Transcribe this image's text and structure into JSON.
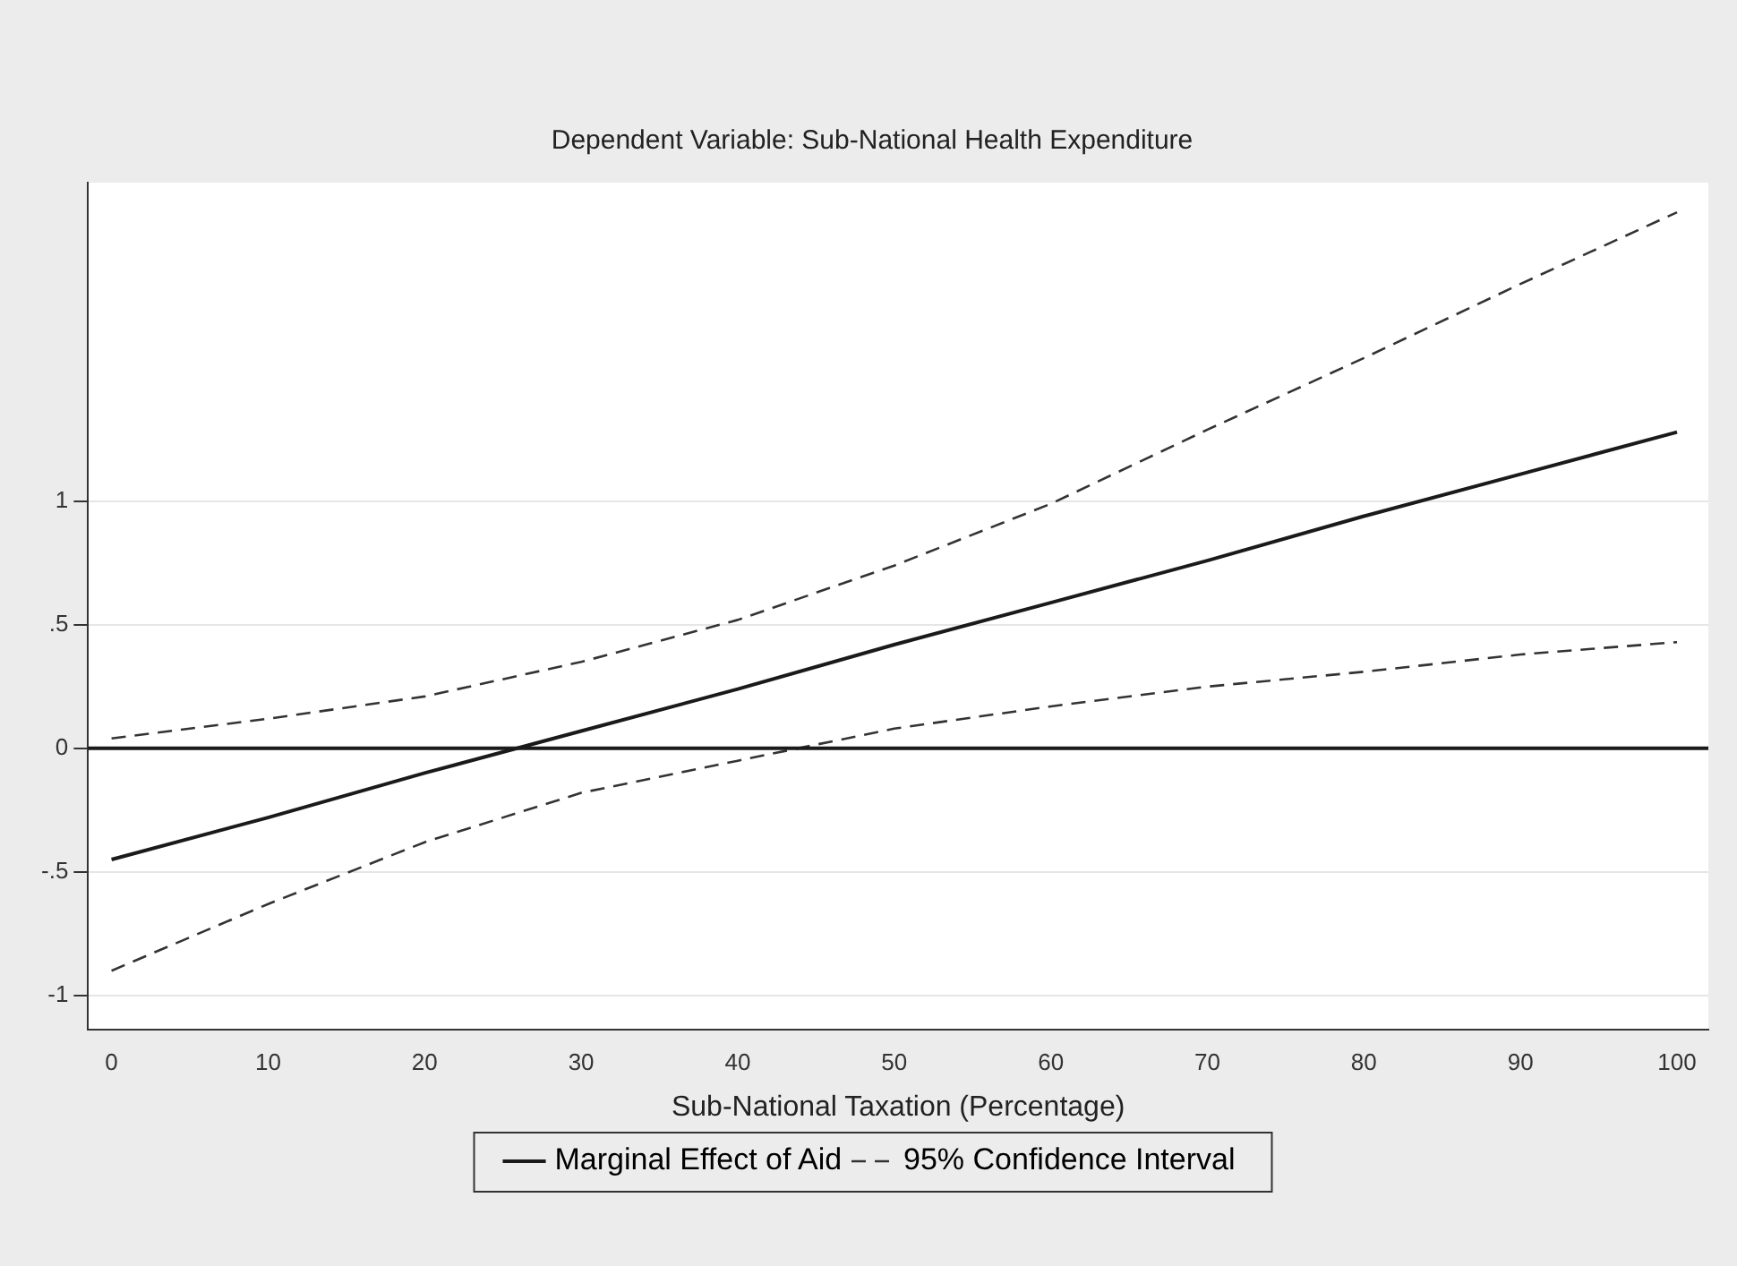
{
  "chart_data": {
    "type": "line",
    "title": "Dependent Variable: Sub-National Health Expenditure",
    "xlabel": "Sub-National Taxation (Percentage)",
    "x": [
      0,
      10,
      20,
      30,
      40,
      50,
      60,
      70,
      80,
      90,
      100
    ],
    "series": [
      {
        "name": "Marginal Effect of Aid",
        "color": "#1a1a1a",
        "line_style": "solid",
        "values": [
          -0.45,
          -0.28,
          -0.1,
          0.07,
          0.24,
          0.42,
          0.59,
          0.76,
          0.94,
          1.11,
          1.28
        ]
      },
      {
        "name": "95% Confidence Interval",
        "color": "#333333",
        "line_style": "dashed",
        "values": [
          0.04,
          0.12,
          0.21,
          0.35,
          0.52,
          0.74,
          0.99,
          1.29,
          1.58,
          1.88,
          2.17
        ]
      },
      {
        "color": "#333333",
        "line_style": "dashed",
        "values": [
          -0.9,
          -0.63,
          -0.38,
          -0.18,
          -0.05,
          0.08,
          0.17,
          0.25,
          0.31,
          0.38,
          0.43
        ]
      }
    ],
    "xlim": [
      -1.5,
      102
    ],
    "xticks": [
      0,
      10,
      20,
      30,
      40,
      50,
      60,
      70,
      80,
      90,
      100
    ],
    "ylim": [
      -1.14,
      2.29
    ],
    "yticks": [
      -1,
      {
        "value": -0.5,
        "label": "-.5"
      },
      0,
      {
        "value": 0.5,
        "label": ".5"
      },
      1
    ],
    "ref_lines": [
      {
        "axis": "y",
        "value": 0,
        "color": "#1a1a1a",
        "line_style": "solid"
      }
    ],
    "grid": "y",
    "legend": "bottom",
    "marker": "none"
  }
}
